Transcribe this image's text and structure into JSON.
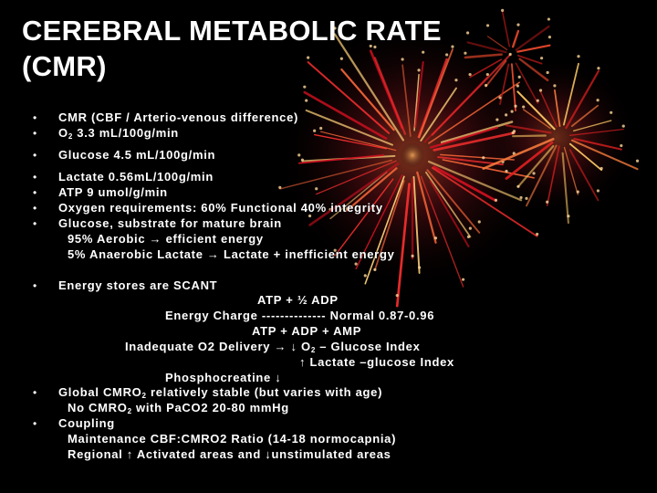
{
  "slide": {
    "title_line1": "CEREBRAL METABOLIC RATE",
    "title_line2": "(CMR)",
    "bullet_symbol": "•",
    "lines": {
      "cmr": "CMR (CBF / Arterio-venous difference)",
      "o2_sym": "O",
      "o2_sub": "2",
      "o2_rest": " 3.3 mL/100g/min",
      "glucose": "Glucose 4.5 mL/100g/min",
      "lactate": "Lactate 0.56mL/100g/min",
      "atp": "ATP 9 umol/g/min",
      "oxygen_req": "Oxygen requirements: 60% Functional 40% integrity",
      "glucose_substrate": "Glucose, substrate for mature brain",
      "aerobic": "95% Aerobic → efficient energy",
      "anaerobic": "5% Anaerobic Lactate → Lactate + inefficient energy",
      "energy_stores": "Energy stores are SCANT",
      "atp_formula": "ATP + ½ ADP",
      "energy_charge": "Energy Charge -------------- Normal 0.87-0.96",
      "atp_sum": "ATP + ADP + AMP",
      "inadequate_o2": "Inadequate O2 Delivery →   ↓  O",
      "inadequate_o2_sub": "2",
      "inadequate_o2_tail": " – Glucose Index",
      "lactate_index": "↑  Lactate –glucose Index",
      "phosphocreatine": "Phosphocreatine ↓",
      "global_cmro_a": "Global CMRO",
      "global_cmro_sub": "2",
      "global_cmro_b": " relatively stable (but varies with age)",
      "no_cmro_a": "No CMRO",
      "no_cmro_sub": "2",
      "no_cmro_b": " with PaCO2 20-80 mmHg",
      "coupling": "Coupling",
      "maintenance": "Maintenance CBF:CMRO2 Ratio (14-18 normocapnia)",
      "regional": "Regional ↑ Activated areas and ↓unstimulated areas"
    }
  }
}
